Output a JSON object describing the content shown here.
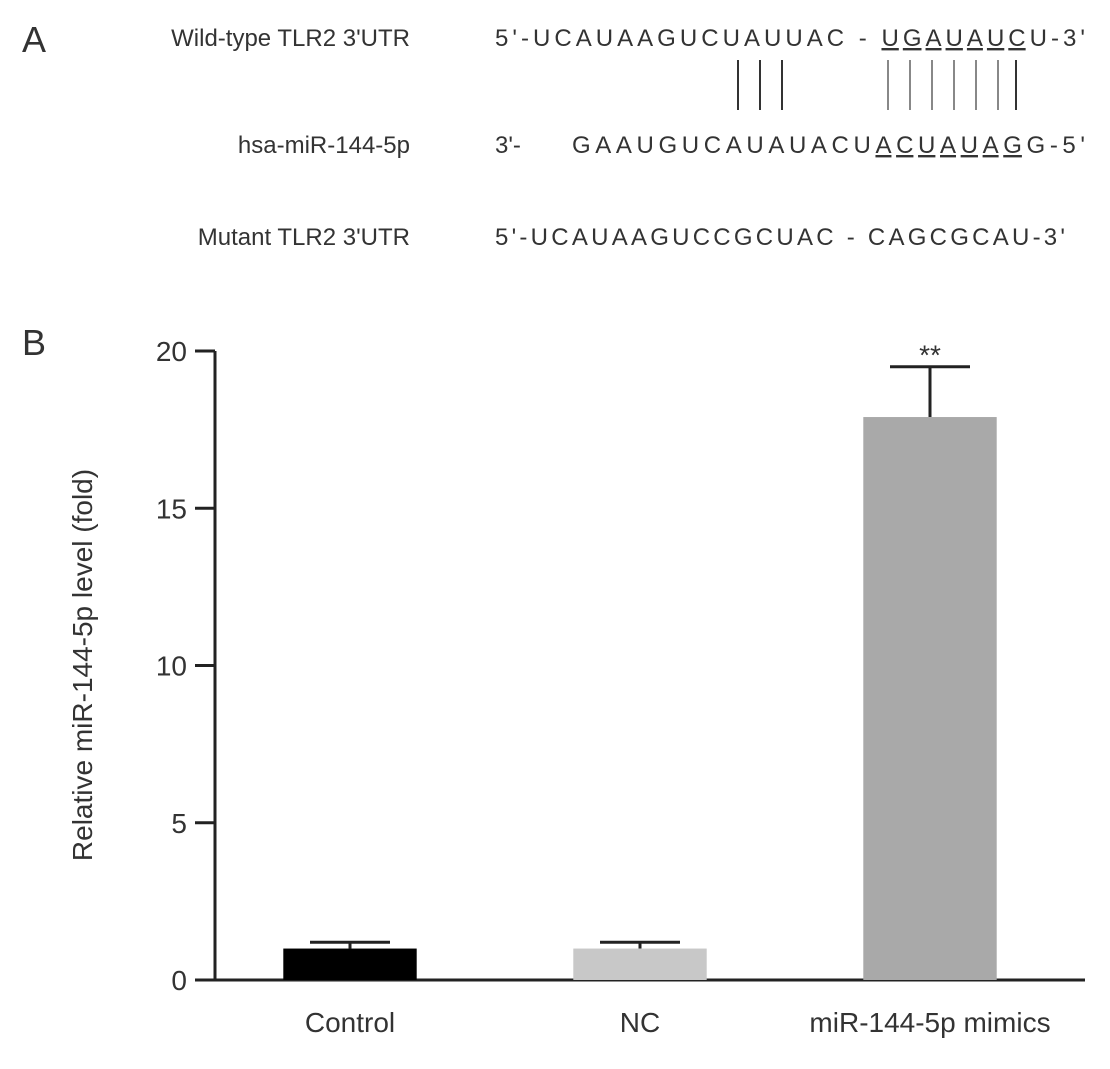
{
  "panel_a": {
    "label": "A",
    "rows": [
      {
        "name": "Wild-type TLR2 3'UTR",
        "sequence": [
          "5'-UCAUAAGUCUAUUAC - ",
          "UGAUAUC",
          "U-3'"
        ]
      },
      {
        "name": "hsa-miR-144-5p",
        "prefix": "3'-",
        "sequence": [
          "GAAUGUCAUAUACU",
          "ACUAUAG",
          "G-5'"
        ]
      },
      {
        "name": "Mutant TLR2 3'UTR",
        "sequence": [
          "5'-UCAUAAGUCCGCUAC - CAGCGCAU-3'"
        ]
      }
    ]
  },
  "chart_data": {
    "type": "bar",
    "panel_label": "B",
    "y_label": "Relative miR-144-5p level (fold)",
    "categories": [
      "Control",
      "NC",
      "miR-144-5p mimics"
    ],
    "values": [
      1.0,
      1.0,
      17.9
    ],
    "errors": [
      0.2,
      0.2,
      1.6
    ],
    "colors": [
      "#000000",
      "#c8c8c8",
      "#a9a9a9"
    ],
    "annotation": "**",
    "ylim": [
      0,
      20
    ],
    "yticks": [
      0,
      5,
      10,
      15,
      20
    ]
  }
}
